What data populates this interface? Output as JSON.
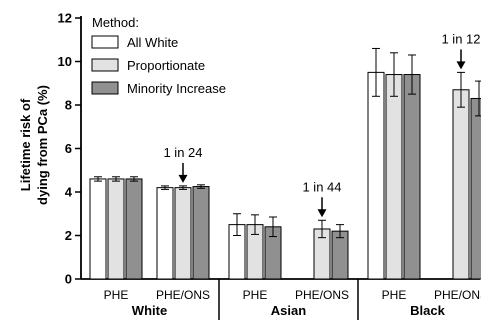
{
  "chart_data": {
    "type": "bar",
    "ylabel_lines": [
      "Lifetime risk of",
      "dying from PCa (%)"
    ],
    "ylim": [
      0,
      12
    ],
    "yticks": [
      0,
      2,
      4,
      6,
      8,
      10,
      12
    ],
    "legend_title": "Method:",
    "legend_position": "top-left",
    "grid": false,
    "series": [
      {
        "name": "All White",
        "color": "#ffffff"
      },
      {
        "name": "Proportionate",
        "color": "#e2e2e2"
      },
      {
        "name": "Minority Increase",
        "color": "#909090"
      }
    ],
    "groups": [
      {
        "label": "White",
        "subgroups": [
          {
            "label": "PHE",
            "values": [
              4.6,
              4.6,
              4.6
            ],
            "errors": [
              0.1,
              0.1,
              0.1
            ]
          },
          {
            "label": "PHE/ONS",
            "values": [
              4.2,
              4.2,
              4.25
            ],
            "errors": [
              0.08,
              0.08,
              0.08
            ]
          }
        ]
      },
      {
        "label": "Asian",
        "subgroups": [
          {
            "label": "PHE",
            "values": [
              2.5,
              2.5,
              2.4
            ],
            "errors": [
              0.5,
              0.45,
              0.45
            ]
          },
          {
            "label": "PHE/ONS",
            "values": [
              null,
              2.3,
              2.2
            ],
            "errors": [
              null,
              0.4,
              0.3
            ]
          }
        ]
      },
      {
        "label": "Black",
        "subgroups": [
          {
            "label": "PHE",
            "values": [
              9.5,
              9.4,
              9.4
            ],
            "errors": [
              1.1,
              1.0,
              0.9
            ]
          },
          {
            "label": "PHE/ONS",
            "values": [
              null,
              8.7,
              8.3
            ],
            "errors": [
              null,
              0.8,
              0.8
            ]
          }
        ]
      }
    ],
    "annotations": [
      {
        "text": "1 in 24",
        "group": 0,
        "subgroup": 1,
        "series": 1
      },
      {
        "text": "1 in 44",
        "group": 1,
        "subgroup": 1,
        "series": 1
      },
      {
        "text": "1 in 12",
        "group": 2,
        "subgroup": 1,
        "series": 1
      }
    ]
  }
}
